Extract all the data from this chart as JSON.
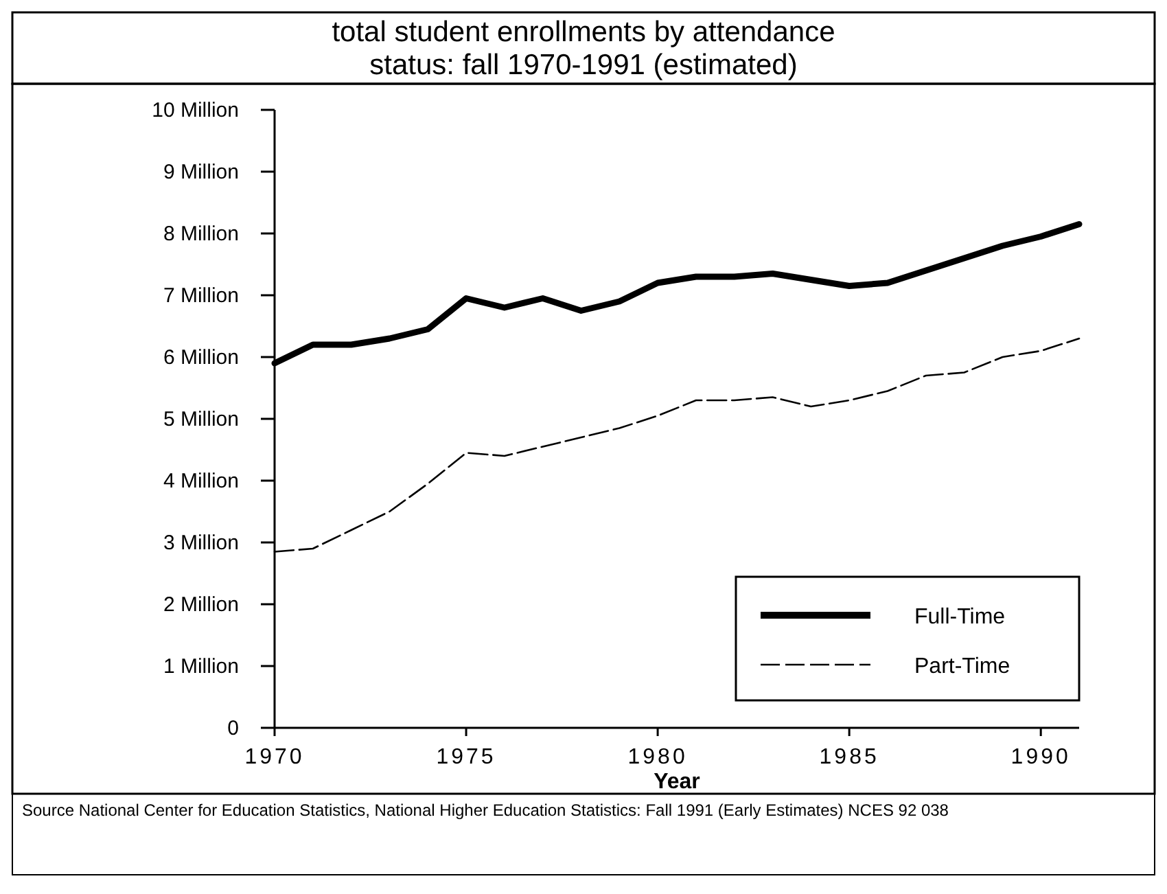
{
  "chart_data": {
    "type": "line",
    "title": "total student enrollments by attendance status: fall 1970-1991 (estimated)",
    "xlabel": "Year",
    "x": [
      1970,
      1971,
      1972,
      1973,
      1974,
      1975,
      1976,
      1977,
      1978,
      1979,
      1980,
      1981,
      1982,
      1983,
      1984,
      1985,
      1986,
      1987,
      1988,
      1989,
      1990,
      1991
    ],
    "series": [
      {
        "name": "Full-Time",
        "color": "#000000",
        "line_style": "solid",
        "values": [
          5.9,
          6.2,
          6.2,
          6.3,
          6.45,
          6.95,
          6.8,
          6.95,
          6.75,
          6.9,
          7.2,
          7.3,
          7.3,
          7.35,
          7.25,
          7.15,
          7.2,
          7.4,
          7.6,
          7.8,
          7.95,
          8.15
        ]
      },
      {
        "name": "Part-Time",
        "color": "#000000",
        "line_style": "dashed",
        "values": [
          2.85,
          2.9,
          3.2,
          3.5,
          3.95,
          4.45,
          4.4,
          4.55,
          4.7,
          4.85,
          5.05,
          5.3,
          5.3,
          5.35,
          5.2,
          5.3,
          5.45,
          5.7,
          5.75,
          6.0,
          6.1,
          6.3
        ]
      }
    ],
    "xlim": [
      1970,
      1991
    ],
    "xticks": [
      1970,
      1975,
      1980,
      1985,
      1990
    ],
    "ylim": [
      0,
      10
    ],
    "yticks": [
      0,
      {
        "value": 1,
        "label": "1 Million"
      },
      {
        "value": 2,
        "label": "2 Million"
      },
      {
        "value": 3,
        "label": "3 Million"
      },
      {
        "value": 4,
        "label": "4 Million"
      },
      {
        "value": 5,
        "label": "5 Million"
      },
      {
        "value": 6,
        "label": "6 Million"
      },
      {
        "value": 7,
        "label": "7 Million"
      },
      {
        "value": 8,
        "label": "8 Million"
      },
      {
        "value": 9,
        "label": "9 Million"
      },
      {
        "value": 10,
        "label": "10 Million"
      }
    ],
    "grid": false,
    "legend": "bottom right",
    "annotations": [
      "Source  National Center for Education Statistics, National Higher Education Statistics: Fall 1991 (Early Estimates) NCES 92 038"
    ]
  }
}
